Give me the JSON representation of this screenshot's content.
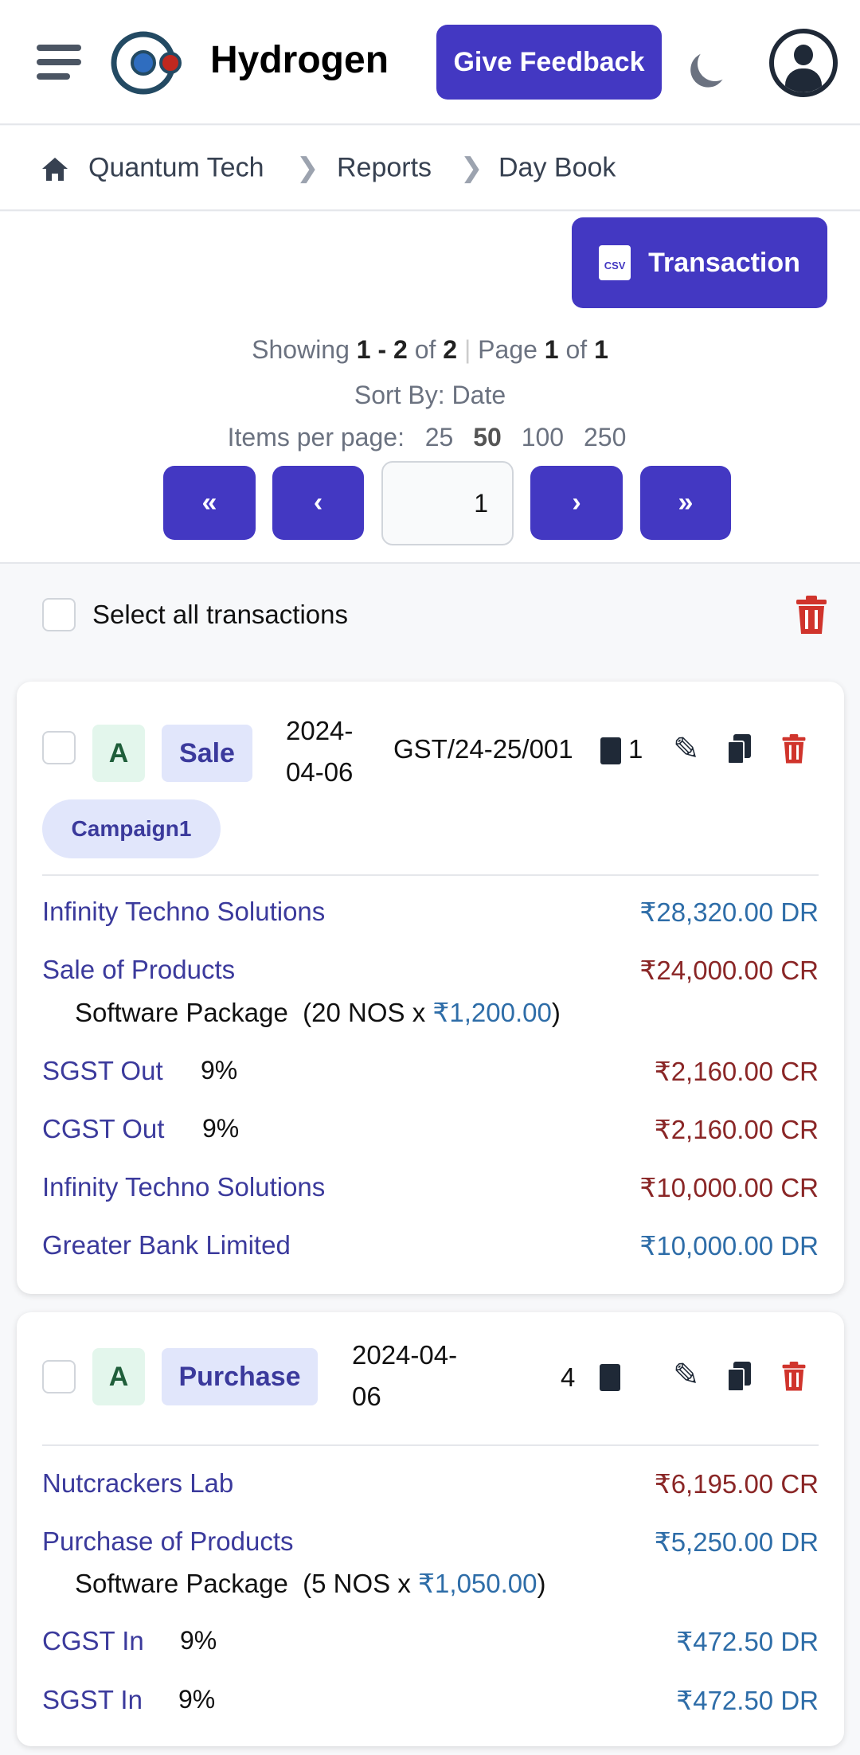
{
  "header": {
    "app_title": "Hydrogen",
    "feedback_label": "Give Feedback"
  },
  "breadcrumb": [
    "Quantum Tech",
    "Reports",
    "Day Book"
  ],
  "toolbar": {
    "transaction_label": "Transaction"
  },
  "summary": {
    "showing_label": "Showing",
    "range": "1 - 2",
    "of1": "of",
    "total": "2",
    "sep": "|",
    "page_label": "Page",
    "page": "1",
    "of2": "of",
    "pages": "1",
    "sort_label": "Sort By: Date",
    "items_label": "Items per page:",
    "page_sizes": [
      "25",
      "50",
      "100",
      "250"
    ],
    "selected_size": "50"
  },
  "pagination": {
    "current": "1"
  },
  "select_all_label": "Select all transactions",
  "colors": {
    "accent": "#4338c2",
    "debit": "#2e6da8",
    "credit": "#8a2626",
    "delete": "#d0342c"
  },
  "transactions": [
    {
      "status": "A",
      "type": "Sale",
      "date_line1": "2024-",
      "date_line2": "04-06",
      "number": "GST/24-25/001",
      "attachments": "1",
      "tag": "Campaign1",
      "lines": [
        {
          "account": "Infinity Techno Solutions",
          "pct": "",
          "amount": "₹28,320.00 DR",
          "side": "dr"
        },
        {
          "account": "Sale of Products",
          "pct": "",
          "amount": "₹24,000.00 CR",
          "side": "cr",
          "item": "Software Package",
          "qty": "(20 NOS x",
          "rate": "₹1,200.00",
          "close": ")"
        },
        {
          "account": "SGST Out",
          "pct": "9%",
          "amount": "₹2,160.00 CR",
          "side": "cr"
        },
        {
          "account": "CGST Out",
          "pct": "9%",
          "amount": "₹2,160.00 CR",
          "side": "cr"
        },
        {
          "account": "Infinity Techno Solutions",
          "pct": "",
          "amount": "₹10,000.00 CR",
          "side": "cr"
        },
        {
          "account": "Greater Bank Limited",
          "pct": "",
          "amount": "₹10,000.00 DR",
          "side": "dr"
        }
      ]
    },
    {
      "status": "A",
      "type": "Purchase",
      "date_line1": "2024-04-",
      "date_line2": "06",
      "number": "",
      "attachments": "4",
      "lines": [
        {
          "account": "Nutcrackers Lab",
          "pct": "",
          "amount": "₹6,195.00 CR",
          "side": "cr"
        },
        {
          "account": "Purchase of Products",
          "pct": "",
          "amount": "₹5,250.00 DR",
          "side": "dr",
          "item": "Software Package",
          "qty": "(5 NOS x",
          "rate": "₹1,050.00",
          "close": ")"
        },
        {
          "account": "CGST In",
          "pct": "9%",
          "amount": "₹472.50 DR",
          "side": "dr"
        },
        {
          "account": "SGST In",
          "pct": "9%",
          "amount": "₹472.50 DR",
          "side": "dr"
        }
      ]
    }
  ]
}
